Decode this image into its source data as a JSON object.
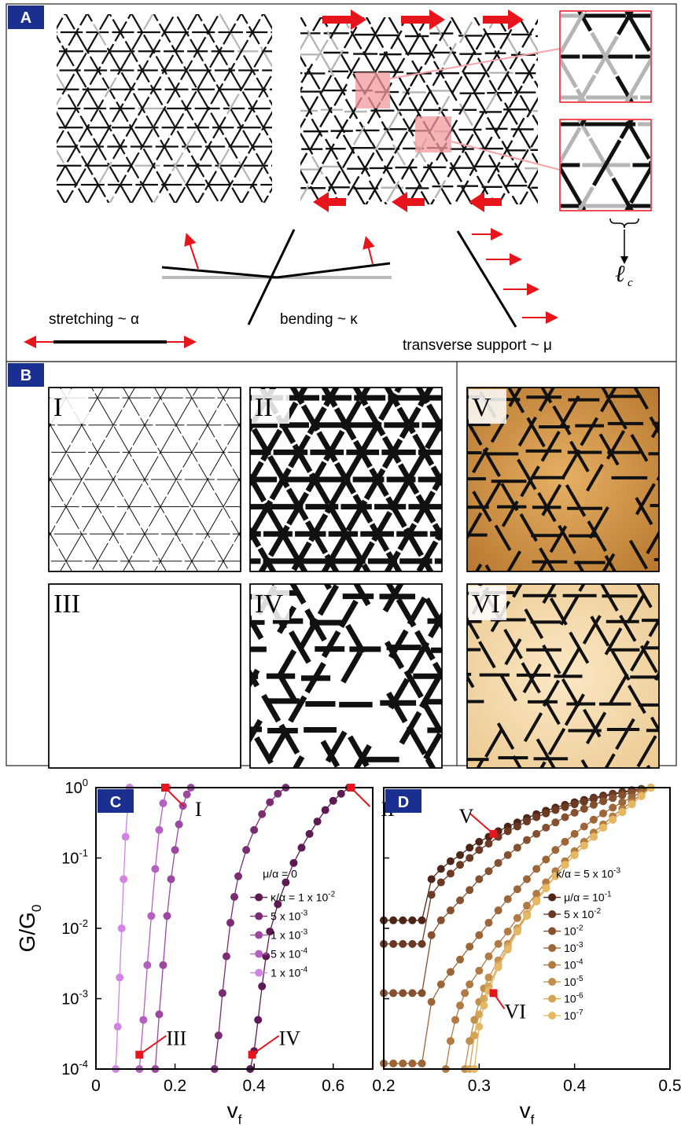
{
  "panels": {
    "A": {
      "tag": "A",
      "labels": {
        "stretching": "stretching ~ α",
        "bending": "bending ~ κ",
        "transverse": "transverse support ~ μ",
        "lc": "ℓ",
        "lc_sub": "c"
      }
    },
    "B": {
      "tag": "B",
      "networks": [
        "I",
        "II",
        "III",
        "IV",
        "V",
        "VI"
      ]
    }
  },
  "chart_data": [
    {
      "type": "line",
      "panel": "C",
      "xlabel": "v",
      "xlabel_sub": "f",
      "ylabel": "G/G",
      "ylabel_sub": "0",
      "xlim": [
        0,
        0.7
      ],
      "ylim": [
        0.0001,
        1
      ],
      "yscale": "log",
      "xticks": [
        0,
        0.2,
        0.4,
        0.6
      ],
      "legend_title": "μ/α = 0",
      "legend_placement": "center-right",
      "series": [
        {
          "name": "κ/α = 1 x 10",
          "exp": "-2",
          "color": "#5e1a55",
          "x": [
            0.39,
            0.4,
            0.41,
            0.42,
            0.43,
            0.44,
            0.46,
            0.48,
            0.5,
            0.52,
            0.54,
            0.56,
            0.58,
            0.6,
            0.62,
            0.64
          ],
          "y": [
            0.0001,
            0.00018,
            0.0005,
            0.0015,
            0.004,
            0.009,
            0.022,
            0.045,
            0.085,
            0.14,
            0.22,
            0.33,
            0.48,
            0.65,
            0.82,
            1.0
          ]
        },
        {
          "name": "5 x 10",
          "exp": "-3",
          "color": "#7a2d72",
          "x": [
            0.3,
            0.31,
            0.32,
            0.33,
            0.34,
            0.35,
            0.36,
            0.38,
            0.4,
            0.42,
            0.44,
            0.46,
            0.48
          ],
          "y": [
            0.0001,
            0.0003,
            0.0012,
            0.004,
            0.012,
            0.028,
            0.055,
            0.13,
            0.25,
            0.42,
            0.62,
            0.82,
            1.0
          ]
        },
        {
          "name": "1 x 10",
          "exp": "-3",
          "color": "#9a48a0",
          "x": [
            0.15,
            0.16,
            0.17,
            0.18,
            0.19,
            0.2,
            0.21,
            0.22,
            0.23,
            0.24
          ],
          "y": [
            0.0001,
            0.0006,
            0.003,
            0.015,
            0.05,
            0.13,
            0.3,
            0.55,
            0.8,
            1.0
          ]
        },
        {
          "name": "5 x 10",
          "exp": "-4",
          "color": "#b460c0",
          "x": [
            0.11,
            0.12,
            0.13,
            0.14,
            0.15,
            0.16,
            0.17,
            0.18
          ],
          "y": [
            0.0001,
            0.0005,
            0.003,
            0.015,
            0.07,
            0.25,
            0.6,
            1.0
          ]
        },
        {
          "name": "1 x 10",
          "exp": "-4",
          "color": "#d183e6",
          "x": [
            0.05,
            0.055,
            0.06,
            0.065,
            0.07,
            0.075,
            0.08,
            0.085
          ],
          "y": [
            0.0001,
            0.0004,
            0.002,
            0.01,
            0.05,
            0.2,
            0.5,
            1.0
          ]
        }
      ],
      "markers": [
        {
          "label": "I",
          "x": 0.175,
          "y": 1.0
        },
        {
          "label": "II",
          "x": 0.645,
          "y": 1.0
        },
        {
          "label": "III",
          "x": 0.11,
          "y": 0.00016
        },
        {
          "label": "IV",
          "x": 0.395,
          "y": 0.00016
        }
      ]
    },
    {
      "type": "line",
      "panel": "D",
      "xlabel": "v",
      "xlabel_sub": "f",
      "xlim": [
        0.2,
        0.5
      ],
      "ylim": [
        0.0001,
        1
      ],
      "yscale": "log",
      "xticks": [
        0.2,
        0.3,
        0.4,
        0.5
      ],
      "legend_title": "κ/α  = 5 x 10",
      "legend_title_exp": "-3",
      "legend_placement": "center-right",
      "series": [
        {
          "name": "μ/α = 10",
          "exp": "-1",
          "color": "#4e2618",
          "x": [
            0.2,
            0.21,
            0.22,
            0.23,
            0.24,
            0.25,
            0.26,
            0.27,
            0.28,
            0.29,
            0.3,
            0.31,
            0.32,
            0.33,
            0.34,
            0.35,
            0.36,
            0.37,
            0.38,
            0.39,
            0.4,
            0.41,
            0.42,
            0.43,
            0.44,
            0.45,
            0.46,
            0.47,
            0.48
          ],
          "y": [
            0.013,
            0.013,
            0.013,
            0.013,
            0.013,
            0.05,
            0.07,
            0.09,
            0.11,
            0.14,
            0.17,
            0.2,
            0.24,
            0.28,
            0.32,
            0.37,
            0.42,
            0.47,
            0.52,
            0.57,
            0.62,
            0.67,
            0.72,
            0.77,
            0.82,
            0.87,
            0.92,
            0.96,
            1.0
          ]
        },
        {
          "name": "5 x 10",
          "exp": "-2",
          "color": "#6b3a24",
          "x": [
            0.2,
            0.21,
            0.22,
            0.23,
            0.24,
            0.25,
            0.26,
            0.27,
            0.28,
            0.29,
            0.3,
            0.31,
            0.32,
            0.33,
            0.34,
            0.35,
            0.36,
            0.37,
            0.38,
            0.39,
            0.4,
            0.41,
            0.42,
            0.43,
            0.44,
            0.45,
            0.46,
            0.47,
            0.48
          ],
          "y": [
            0.006,
            0.006,
            0.006,
            0.006,
            0.006,
            0.03,
            0.045,
            0.06,
            0.08,
            0.1,
            0.13,
            0.16,
            0.2,
            0.24,
            0.28,
            0.33,
            0.38,
            0.43,
            0.48,
            0.53,
            0.58,
            0.63,
            0.69,
            0.74,
            0.8,
            0.85,
            0.9,
            0.95,
            1.0
          ]
        },
        {
          "name": "10",
          "exp": "-2",
          "color": "#845030",
          "x": [
            0.2,
            0.21,
            0.22,
            0.23,
            0.24,
            0.25,
            0.26,
            0.27,
            0.28,
            0.29,
            0.3,
            0.31,
            0.32,
            0.33,
            0.34,
            0.35,
            0.36,
            0.37,
            0.38,
            0.39,
            0.4,
            0.41,
            0.42,
            0.43,
            0.44,
            0.45,
            0.46,
            0.47,
            0.48
          ],
          "y": [
            0.0012,
            0.0012,
            0.0012,
            0.0012,
            0.0012,
            0.008,
            0.013,
            0.018,
            0.025,
            0.035,
            0.05,
            0.065,
            0.085,
            0.11,
            0.14,
            0.18,
            0.22,
            0.27,
            0.32,
            0.38,
            0.44,
            0.5,
            0.57,
            0.64,
            0.71,
            0.78,
            0.85,
            0.93,
            1.0
          ]
        },
        {
          "name": "10",
          "exp": "-3",
          "color": "#9c6638",
          "x": [
            0.2,
            0.21,
            0.22,
            0.23,
            0.24,
            0.25,
            0.26,
            0.27,
            0.28,
            0.29,
            0.3,
            0.31,
            0.32,
            0.33,
            0.34,
            0.35,
            0.36,
            0.37,
            0.38,
            0.39,
            0.4,
            0.41,
            0.42,
            0.43,
            0.44,
            0.45,
            0.46,
            0.47,
            0.48
          ],
          "y": [
            0.00012,
            0.00012,
            0.00012,
            0.00012,
            0.00012,
            0.0009,
            0.0016,
            0.0024,
            0.0036,
            0.0055,
            0.008,
            0.012,
            0.018,
            0.026,
            0.036,
            0.05,
            0.07,
            0.095,
            0.13,
            0.17,
            0.22,
            0.28,
            0.35,
            0.43,
            0.52,
            0.62,
            0.73,
            0.86,
            1.0
          ]
        },
        {
          "name": "10",
          "exp": "-4",
          "color": "#b07a42",
          "x": [
            0.265,
            0.27,
            0.275,
            0.28,
            0.285,
            0.29,
            0.3,
            0.31,
            0.32,
            0.33,
            0.34,
            0.35,
            0.36,
            0.37,
            0.38,
            0.39,
            0.4,
            0.41,
            0.42,
            0.43,
            0.44,
            0.45,
            0.46,
            0.47,
            0.48
          ],
          "y": [
            0.0001,
            0.00025,
            0.0005,
            0.0008,
            0.0012,
            0.0016,
            0.0025,
            0.004,
            0.006,
            0.009,
            0.014,
            0.021,
            0.031,
            0.045,
            0.065,
            0.09,
            0.125,
            0.17,
            0.23,
            0.3,
            0.39,
            0.5,
            0.63,
            0.8,
            1.0
          ]
        },
        {
          "name": "10",
          "exp": "-5",
          "color": "#c28e4c",
          "x": [
            0.285,
            0.29,
            0.295,
            0.3,
            0.305,
            0.31,
            0.32,
            0.33,
            0.34,
            0.35,
            0.36,
            0.37,
            0.38,
            0.39,
            0.4,
            0.41,
            0.42,
            0.43,
            0.44,
            0.45,
            0.46,
            0.47,
            0.48
          ],
          "y": [
            0.0001,
            0.00025,
            0.0005,
            0.0009,
            0.0014,
            0.002,
            0.0035,
            0.006,
            0.01,
            0.016,
            0.025,
            0.038,
            0.056,
            0.08,
            0.11,
            0.15,
            0.2,
            0.27,
            0.35,
            0.45,
            0.58,
            0.76,
            1.0
          ]
        },
        {
          "name": "10",
          "exp": "-6",
          "color": "#d4a458",
          "x": [
            0.29,
            0.295,
            0.3,
            0.305,
            0.31,
            0.32,
            0.33,
            0.34,
            0.35,
            0.36,
            0.37,
            0.38,
            0.39,
            0.4,
            0.41,
            0.42,
            0.43,
            0.44,
            0.45,
            0.46,
            0.47,
            0.48
          ],
          "y": [
            0.0001,
            0.0003,
            0.0006,
            0.001,
            0.0015,
            0.003,
            0.0055,
            0.0095,
            0.016,
            0.025,
            0.038,
            0.056,
            0.08,
            0.11,
            0.15,
            0.2,
            0.27,
            0.35,
            0.45,
            0.58,
            0.76,
            1.0
          ]
        },
        {
          "name": "10",
          "exp": "-7",
          "color": "#e6b864",
          "x": [
            0.295,
            0.3,
            0.305,
            0.31,
            0.32,
            0.33,
            0.34,
            0.35,
            0.36,
            0.37,
            0.38,
            0.39,
            0.4,
            0.41,
            0.42,
            0.43,
            0.44,
            0.45,
            0.46,
            0.47,
            0.48
          ],
          "y": [
            0.0001,
            0.0004,
            0.0008,
            0.0013,
            0.0028,
            0.005,
            0.009,
            0.015,
            0.024,
            0.037,
            0.055,
            0.08,
            0.11,
            0.15,
            0.2,
            0.27,
            0.35,
            0.45,
            0.58,
            0.76,
            1.0
          ]
        }
      ],
      "markers": [
        {
          "label": "V",
          "x": 0.315,
          "y": 0.22
        },
        {
          "label": "VI",
          "x": 0.315,
          "y": 0.0012
        }
      ]
    }
  ]
}
